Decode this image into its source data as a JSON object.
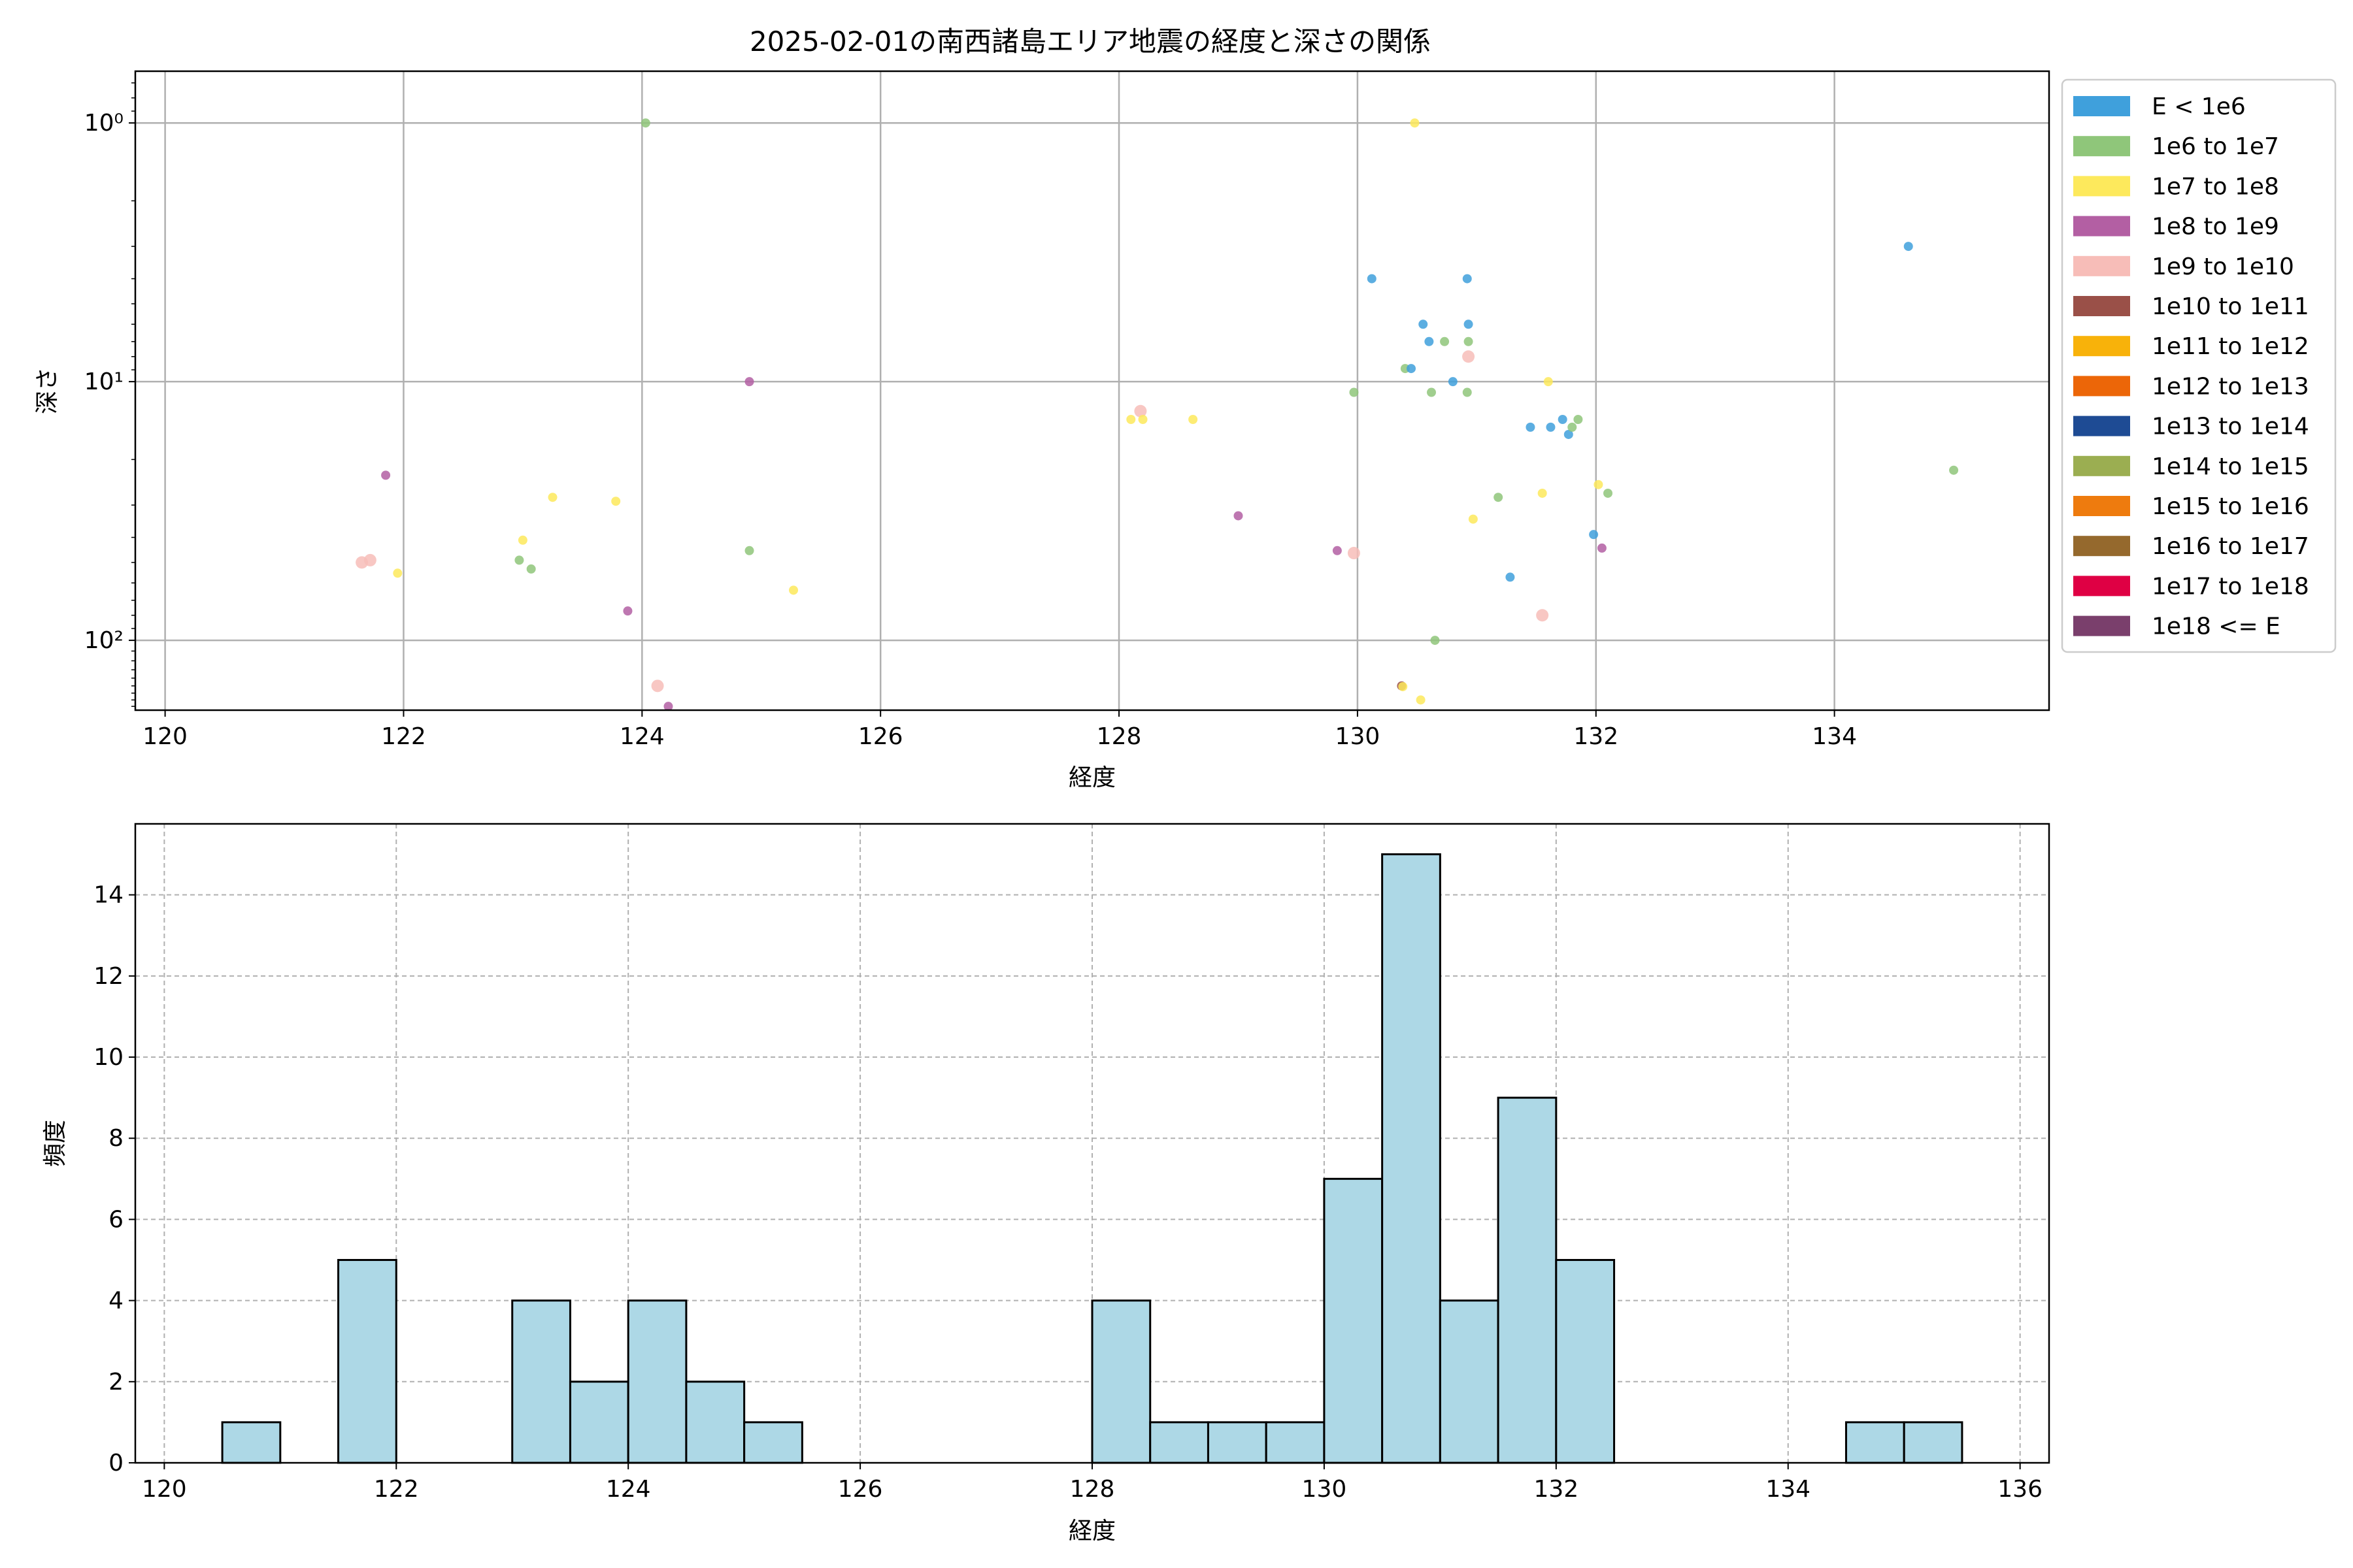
{
  "chart_data": [
    {
      "type": "scatter",
      "title": "2025-02-01の南西諸島エリア地震の経度と深さの関係",
      "xlabel": "経度",
      "ylabel": "深さ",
      "xlim": [
        119.75,
        135.8
      ],
      "ylim_log10": [
        -0.2,
        2.27
      ],
      "y_scale": "log",
      "y_inverted": true,
      "xticks": [
        120,
        122,
        124,
        126,
        128,
        130,
        132,
        134
      ],
      "xtick_labels": [
        "120",
        "122",
        "124",
        "126",
        "128",
        "130",
        "132",
        "134"
      ],
      "yticks": [
        1,
        10,
        100
      ],
      "ytick_labels": [
        "10⁰",
        "10¹",
        "10²"
      ],
      "grid": true,
      "legend_position": "outside-right",
      "legend": [
        {
          "label": "E < 1e6",
          "color": "#3fa0dc"
        },
        {
          "label": "1e6 to 1e7",
          "color": "#8fc67a"
        },
        {
          "label": "1e7 to 1e8",
          "color": "#fde95c"
        },
        {
          "label": "1e8 to 1e9",
          "color": "#b35fa3"
        },
        {
          "label": "1e9 to 1e10",
          "color": "#f7bdb8"
        },
        {
          "label": "1e10 to 1e11",
          "color": "#9a5048"
        },
        {
          "label": "1e11 to 1e12",
          "color": "#f8b20a"
        },
        {
          "label": "1e12 to 1e13",
          "color": "#ec6608"
        },
        {
          "label": "1e13 to 1e14",
          "color": "#1e4b94"
        },
        {
          "label": "1e14 to 1e15",
          "color": "#9bae51"
        },
        {
          "label": "1e15 to 1e16",
          "color": "#ee7b0e"
        },
        {
          "label": "1e16 to 1e17",
          "color": "#95692d"
        },
        {
          "label": "1e17 to 1e18",
          "color": "#df0044"
        },
        {
          "label": "1e18 <= E",
          "color": "#7a3f6c"
        }
      ],
      "points": [
        {
          "x": 121.65,
          "y": 50,
          "c": 4
        },
        {
          "x": 121.72,
          "y": 49,
          "c": 4
        },
        {
          "x": 121.85,
          "y": 23,
          "c": 3
        },
        {
          "x": 121.95,
          "y": 55,
          "c": 2
        },
        {
          "x": 122.97,
          "y": 49,
          "c": 1
        },
        {
          "x": 123.0,
          "y": 41,
          "c": 2
        },
        {
          "x": 123.07,
          "y": 53,
          "c": 1
        },
        {
          "x": 123.25,
          "y": 28,
          "c": 2
        },
        {
          "x": 123.78,
          "y": 29,
          "c": 2
        },
        {
          "x": 123.88,
          "y": 77,
          "c": 3
        },
        {
          "x": 124.03,
          "y": 1.0,
          "c": 1
        },
        {
          "x": 124.13,
          "y": 150,
          "c": 4
        },
        {
          "x": 124.22,
          "y": 180,
          "c": 3
        },
        {
          "x": 124.9,
          "y": 45,
          "c": 1
        },
        {
          "x": 124.9,
          "y": 10,
          "c": 3
        },
        {
          "x": 125.27,
          "y": 64,
          "c": 2
        },
        {
          "x": 128.1,
          "y": 14,
          "c": 2
        },
        {
          "x": 128.18,
          "y": 13,
          "c": 4
        },
        {
          "x": 128.2,
          "y": 14,
          "c": 2
        },
        {
          "x": 128.62,
          "y": 14,
          "c": 2
        },
        {
          "x": 129.0,
          "y": 33,
          "c": 3
        },
        {
          "x": 129.83,
          "y": 45,
          "c": 3
        },
        {
          "x": 129.97,
          "y": 46,
          "c": 4
        },
        {
          "x": 129.97,
          "y": 11,
          "c": 1
        },
        {
          "x": 130.12,
          "y": 4,
          "c": 0
        },
        {
          "x": 130.37,
          "y": 150,
          "c": 5
        },
        {
          "x": 130.38,
          "y": 151,
          "c": 2
        },
        {
          "x": 130.4,
          "y": 8.9,
          "c": 1
        },
        {
          "x": 130.45,
          "y": 8.9,
          "c": 0
        },
        {
          "x": 130.48,
          "y": 1.0,
          "c": 2
        },
        {
          "x": 130.53,
          "y": 170,
          "c": 2
        },
        {
          "x": 130.55,
          "y": 6,
          "c": 0
        },
        {
          "x": 130.6,
          "y": 7,
          "c": 0
        },
        {
          "x": 130.62,
          "y": 11,
          "c": 1
        },
        {
          "x": 130.65,
          "y": 100,
          "c": 1
        },
        {
          "x": 130.73,
          "y": 7,
          "c": 1
        },
        {
          "x": 130.8,
          "y": 10,
          "c": 0
        },
        {
          "x": 130.92,
          "y": 11,
          "c": 1
        },
        {
          "x": 130.92,
          "y": 4,
          "c": 0
        },
        {
          "x": 130.93,
          "y": 8,
          "c": 4
        },
        {
          "x": 130.93,
          "y": 6,
          "c": 0
        },
        {
          "x": 130.93,
          "y": 7,
          "c": 1
        },
        {
          "x": 130.97,
          "y": 34,
          "c": 2
        },
        {
          "x": 131.18,
          "y": 28,
          "c": 1
        },
        {
          "x": 131.28,
          "y": 57,
          "c": 0
        },
        {
          "x": 131.45,
          "y": 15,
          "c": 0
        },
        {
          "x": 131.55,
          "y": 27,
          "c": 2
        },
        {
          "x": 131.55,
          "y": 80,
          "c": 4
        },
        {
          "x": 131.6,
          "y": 10,
          "c": 2
        },
        {
          "x": 131.62,
          "y": 15,
          "c": 0
        },
        {
          "x": 131.72,
          "y": 14,
          "c": 0
        },
        {
          "x": 131.77,
          "y": 16,
          "c": 0
        },
        {
          "x": 131.8,
          "y": 15,
          "c": 1
        },
        {
          "x": 131.85,
          "y": 14,
          "c": 1
        },
        {
          "x": 131.98,
          "y": 39,
          "c": 0
        },
        {
          "x": 132.02,
          "y": 25,
          "c": 2
        },
        {
          "x": 132.05,
          "y": 44,
          "c": 3
        },
        {
          "x": 132.1,
          "y": 27,
          "c": 1
        },
        {
          "x": 134.62,
          "y": 3,
          "c": 0
        },
        {
          "x": 135.0,
          "y": 22,
          "c": 1
        }
      ]
    },
    {
      "type": "bar",
      "subtype": "histogram",
      "xlabel": "経度",
      "ylabel": "頻度",
      "xlim": [
        119.75,
        136.25
      ],
      "ylim": [
        0,
        15.75
      ],
      "xticks": [
        120,
        122,
        124,
        126,
        128,
        130,
        132,
        134,
        136
      ],
      "yticks": [
        0,
        2,
        4,
        6,
        8,
        10,
        12,
        14
      ],
      "grid": true,
      "bar_color": "#add8e6",
      "edge_color": "#000000",
      "bin_width": 0.5,
      "bins": [
        {
          "x0": 120.5,
          "count": 1
        },
        {
          "x0": 121.5,
          "count": 5
        },
        {
          "x0": 123.0,
          "count": 4
        },
        {
          "x0": 123.5,
          "count": 2
        },
        {
          "x0": 124.0,
          "count": 4
        },
        {
          "x0": 124.5,
          "count": 2
        },
        {
          "x0": 125.0,
          "count": 1
        },
        {
          "x0": 128.0,
          "count": 4
        },
        {
          "x0": 128.5,
          "count": 1
        },
        {
          "x0": 129.0,
          "count": 1
        },
        {
          "x0": 129.5,
          "count": 1
        },
        {
          "x0": 130.0,
          "count": 7
        },
        {
          "x0": 130.5,
          "count": 15
        },
        {
          "x0": 131.0,
          "count": 4
        },
        {
          "x0": 131.5,
          "count": 9
        },
        {
          "x0": 132.0,
          "count": 5
        },
        {
          "x0": 134.5,
          "count": 1
        },
        {
          "x0": 135.0,
          "count": 1
        }
      ]
    }
  ]
}
